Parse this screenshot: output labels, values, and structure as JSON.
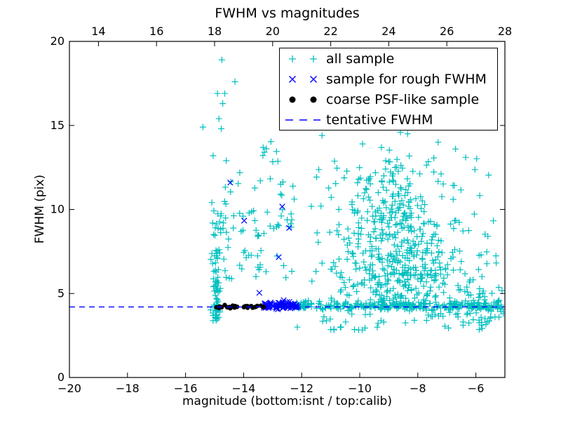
{
  "chart_data": {
    "type": "scatter",
    "title": "FWHM vs magnitudes",
    "xlabel": "magnitude (bottom:isnt / top:calib)",
    "ylabel": "FWHM (pix)",
    "xlim": [
      -20,
      -5
    ],
    "ylim": [
      0,
      20
    ],
    "grid": false,
    "seed": 20,
    "x_ticks_bottom": [
      {
        "v": -20,
        "label": "−20"
      },
      {
        "v": -18,
        "label": "−18"
      },
      {
        "v": -16,
        "label": "−16"
      },
      {
        "v": -14,
        "label": "−14"
      },
      {
        "v": -12,
        "label": "−12"
      },
      {
        "v": -10,
        "label": "−10"
      },
      {
        "v": -8,
        "label": "−8"
      },
      {
        "v": -6,
        "label": "−6"
      }
    ],
    "x_ticks_top": [
      {
        "v": -19,
        "label": "14"
      },
      {
        "v": -17,
        "label": "16"
      },
      {
        "v": -15,
        "label": "18"
      },
      {
        "v": -13,
        "label": "20"
      },
      {
        "v": -11,
        "label": "22"
      },
      {
        "v": -9,
        "label": "24"
      },
      {
        "v": -7,
        "label": "26"
      },
      {
        "v": -5,
        "label": "28"
      }
    ],
    "y_ticks": [
      {
        "v": 0,
        "label": "0"
      },
      {
        "v": 5,
        "label": "5"
      },
      {
        "v": 10,
        "label": "10"
      },
      {
        "v": 15,
        "label": "15"
      },
      {
        "v": 20,
        "label": "20"
      }
    ],
    "colors": {
      "all_sample": "#00bfbf",
      "rough_fwhm": "#0000ff",
      "psf_like": "#000000",
      "tentative_line": "#0000ff"
    },
    "series": [
      {
        "name": "all sample",
        "marker": "plus",
        "color": "#00bfbf",
        "points": [
          [
            -14.75,
            18.9
          ],
          [
            -14.3,
            17.6
          ],
          [
            -14.9,
            16.9
          ],
          [
            -14.65,
            16.9
          ],
          [
            -14.72,
            16.3
          ],
          [
            -14.85,
            15.4
          ],
          [
            -15.4,
            14.9
          ],
          [
            -14.77,
            14.8
          ],
          [
            -15.05,
            13.2
          ],
          [
            -14.6,
            12.9
          ],
          [
            -10.4,
            14.9
          ],
          [
            -11.3,
            14.4
          ],
          [
            -8.6,
            14.6
          ],
          [
            -8.35,
            14.5
          ],
          [
            -7.3,
            14.0
          ],
          [
            -6.7,
            13.6
          ],
          [
            -9.9,
            13.9
          ],
          [
            -12.15,
            3.0
          ],
          [
            -11.0,
            2.85
          ]
        ],
        "clusters": [
          {
            "n": 60,
            "xg": [
              -14.95,
              0.07
            ],
            "yu": [
              3.3,
              7.6
            ]
          },
          {
            "n": 22,
            "xg": [
              -14.88,
              0.12
            ],
            "yg": [
              8.9,
              0.9
            ]
          },
          {
            "n": 70,
            "xu": [
              -14.7,
              -12.25
            ],
            "yu": [
              5.8,
              12.3
            ]
          },
          {
            "n": 8,
            "xu": [
              -13.6,
              -12.3
            ],
            "yu": [
              12.3,
              14.2
            ]
          },
          {
            "n": 270,
            "xu": [
              -12.3,
              -5.05
            ],
            "yg": [
              4.25,
              0.13
            ]
          },
          {
            "n": 250,
            "xg": [
              -8.5,
              1.05
            ],
            "yg": [
              6.2,
              1.25
            ],
            "ymin": 4.3
          },
          {
            "n": 130,
            "xg": [
              -8.9,
              0.85
            ],
            "yg": [
              8.8,
              1.3
            ],
            "ymin": 4.3
          },
          {
            "n": 60,
            "xg": [
              -9.3,
              0.85
            ],
            "yg": [
              11.2,
              1.2
            ]
          },
          {
            "n": 110,
            "xu": [
              -11.8,
              -5.1
            ],
            "yu": [
              4.5,
              13.5
            ]
          },
          {
            "n": 40,
            "xu": [
              -11.5,
              -5.05
            ],
            "yu": [
              2.8,
              3.95
            ]
          },
          {
            "n": 55,
            "xg": [
              -5.8,
              0.5
            ],
            "yg": [
              4.3,
              0.65
            ]
          }
        ]
      },
      {
        "name": "sample for rough FWHM",
        "marker": "x",
        "color": "#0000ff",
        "points": [
          [
            -14.46,
            11.6
          ],
          [
            -13.98,
            9.33
          ],
          [
            -12.67,
            10.17
          ],
          [
            -12.43,
            8.9
          ],
          [
            -12.79,
            7.16
          ],
          [
            -13.46,
            5.04
          ],
          [
            -12.62,
            4.6
          ]
        ],
        "clusters": [
          {
            "n": 80,
            "xu": [
              -13.32,
              -12.1
            ],
            "yg": [
              4.28,
              0.09
            ]
          }
        ]
      },
      {
        "name": "coarse PSF-like sample",
        "marker": "dot",
        "color": "#000000",
        "points": [],
        "clusters": [
          {
            "n": 36,
            "xu": [
              -14.95,
              -13.25
            ],
            "yg": [
              4.2,
              0.045
            ]
          }
        ]
      }
    ],
    "line_series": {
      "name": "tentative FWHM",
      "y": 4.2,
      "style": "dashed",
      "color": "#0000ff"
    },
    "legend": {
      "entries": [
        {
          "label": "all sample",
          "type": "plus",
          "color": "#00bfbf"
        },
        {
          "label": "sample for rough FWHM",
          "type": "x",
          "color": "#0000ff"
        },
        {
          "label": "coarse PSF-like sample",
          "type": "dot",
          "color": "#000000"
        },
        {
          "label": "tentative FWHM",
          "type": "dash",
          "color": "#0000ff"
        }
      ]
    }
  }
}
